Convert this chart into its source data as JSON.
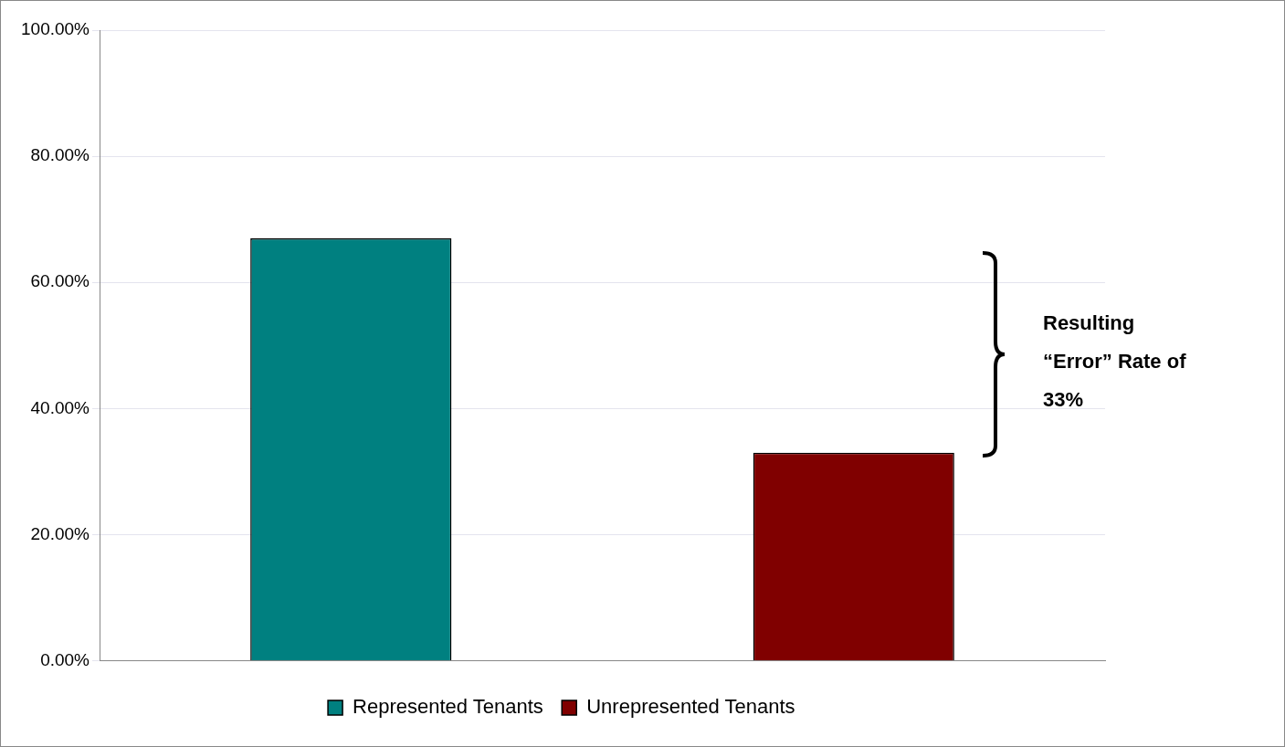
{
  "chart_data": {
    "type": "bar",
    "categories": [
      null,
      null
    ],
    "series": [
      {
        "name": "Represented Tenants",
        "color": "#008080",
        "values": [
          67,
          null
        ]
      },
      {
        "name": "Unrepresented Tenants",
        "color": "#800000",
        "values": [
          null,
          33
        ]
      }
    ],
    "ylim": [
      0,
      100
    ],
    "yticks": [
      {
        "value": 0,
        "label": "0.00%"
      },
      {
        "value": 20,
        "label": "20.00%"
      },
      {
        "value": 40,
        "label": "40.00%"
      },
      {
        "value": 60,
        "label": "60.00%"
      },
      {
        "value": 80,
        "label": "80.00%"
      },
      {
        "value": 100,
        "label": "100.00%"
      }
    ],
    "grid": "y",
    "legend": "bottom",
    "annotations": [
      "Resulting “Error” Rate of 33%"
    ]
  }
}
